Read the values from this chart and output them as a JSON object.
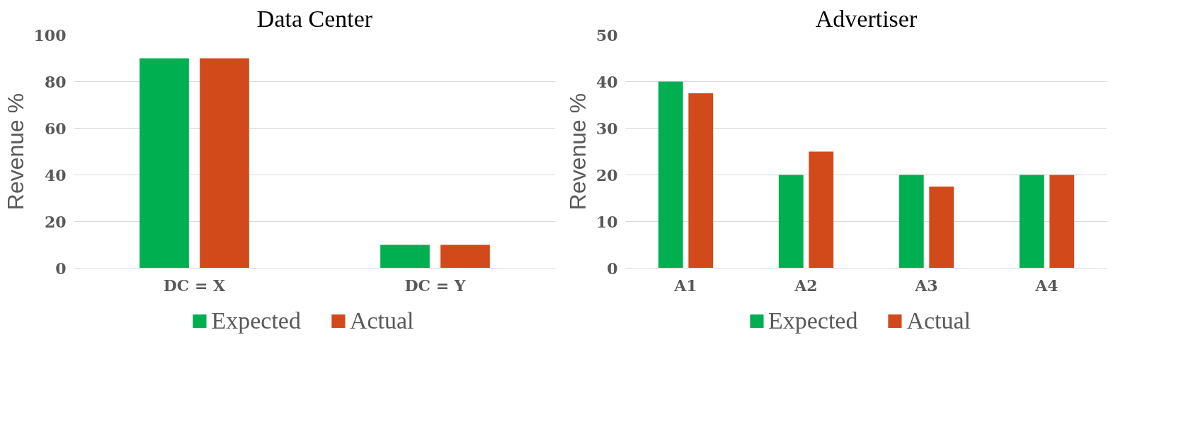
{
  "chart_data": [
    {
      "type": "bar",
      "title": "Data Center",
      "ylabel": "Revenue %",
      "categories": [
        "DC = X",
        "DC = Y"
      ],
      "series": [
        {
          "name": "Expected",
          "color": "#00b050",
          "values": [
            90,
            10
          ]
        },
        {
          "name": "Actual",
          "color": "#d34a1a",
          "values": [
            90,
            10
          ]
        }
      ],
      "ylim": [
        0,
        100
      ],
      "yticks": [
        0,
        20,
        40,
        60,
        80,
        100
      ],
      "grid": "y",
      "legend": "bottom"
    },
    {
      "type": "bar",
      "title": "Advertiser",
      "ylabel": "Revenue %",
      "categories": [
        "A1",
        "A2",
        "A3",
        "A4"
      ],
      "series": [
        {
          "name": "Expected",
          "color": "#00b050",
          "values": [
            40,
            20,
            20,
            20
          ]
        },
        {
          "name": "Actual",
          "color": "#d34a1a",
          "values": [
            37.5,
            25,
            17.5,
            20
          ]
        }
      ],
      "ylim": [
        0,
        50
      ],
      "yticks": [
        0,
        10,
        20,
        30,
        40,
        50
      ],
      "grid": "y",
      "legend": "bottom"
    }
  ]
}
